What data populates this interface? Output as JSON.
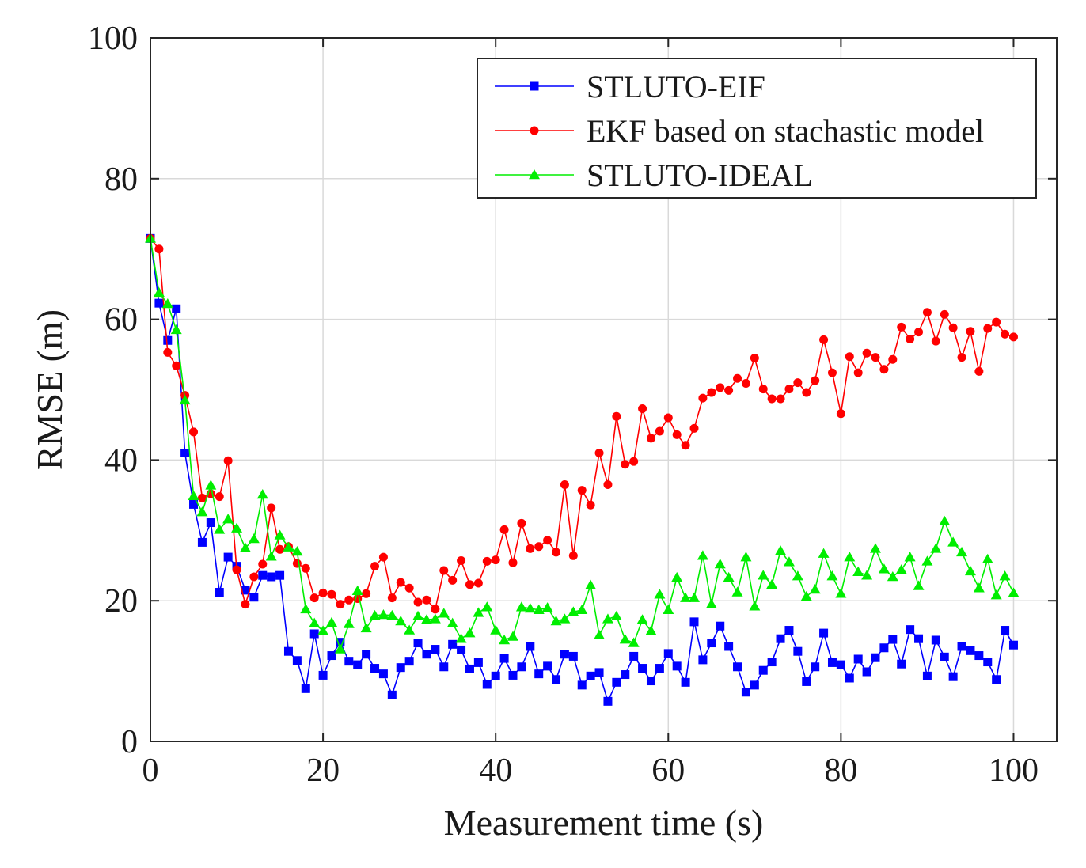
{
  "chart_data": {
    "type": "line",
    "title": "",
    "xlabel": "Measurement time (s)",
    "ylabel": "RMSE (m)",
    "xlim": [
      0,
      105
    ],
    "ylim": [
      0,
      100
    ],
    "xticks": [
      0,
      20,
      40,
      60,
      80,
      100
    ],
    "yticks": [
      0,
      20,
      40,
      60,
      80,
      100
    ],
    "xtick_labels": [
      "0",
      "20",
      "40",
      "60",
      "80",
      "100"
    ],
    "ytick_labels": [
      "0",
      "20",
      "40",
      "60",
      "80",
      "100"
    ],
    "grid": true,
    "legend_position": "top-right",
    "x": [
      0,
      1,
      2,
      3,
      4,
      5,
      6,
      7,
      8,
      9,
      10,
      11,
      12,
      13,
      14,
      15,
      16,
      17,
      18,
      19,
      20,
      21,
      22,
      23,
      24,
      25,
      26,
      27,
      28,
      29,
      30,
      31,
      32,
      33,
      34,
      35,
      36,
      37,
      38,
      39,
      40,
      41,
      42,
      43,
      44,
      45,
      46,
      47,
      48,
      49,
      50,
      51,
      52,
      53,
      54,
      55,
      56,
      57,
      58,
      59,
      60,
      61,
      62,
      63,
      64,
      65,
      66,
      67,
      68,
      69,
      70,
      71,
      72,
      73,
      74,
      75,
      76,
      77,
      78,
      79,
      80,
      81,
      82,
      83,
      84,
      85,
      86,
      87,
      88,
      89,
      90,
      91,
      92,
      93,
      94,
      95,
      96,
      97,
      98,
      99,
      100
    ],
    "series": [
      {
        "name": "STLUTO-EIF",
        "color": "#0000ff",
        "marker": "square",
        "values": [
          71.5,
          62.3,
          57.0,
          61.5,
          41.0,
          33.7,
          28.3,
          31.1,
          21.2,
          26.2,
          24.9,
          21.5,
          20.5,
          23.6,
          23.4,
          23.6,
          12.8,
          11.5,
          7.5,
          15.3,
          9.4,
          12.2,
          14.1,
          11.4,
          10.9,
          12.4,
          10.4,
          9.6,
          6.6,
          10.5,
          11.4,
          14.0,
          12.4,
          13.1,
          10.6,
          13.8,
          13.0,
          10.3,
          11.2,
          8.1,
          9.3,
          11.8,
          9.4,
          10.6,
          13.5,
          9.6,
          10.7,
          8.8,
          12.4,
          12.1,
          8.0,
          9.3,
          9.8,
          5.7,
          8.4,
          9.5,
          12.1,
          10.4,
          8.6,
          10.4,
          12.5,
          10.7,
          8.4,
          17.0,
          11.6,
          14.0,
          16.4,
          13.5,
          10.6,
          7.0,
          8.0,
          10.1,
          11.3,
          14.6,
          15.8,
          12.8,
          8.5,
          10.6,
          15.4,
          11.2,
          10.9,
          9.0,
          11.7,
          9.9,
          11.9,
          13.3,
          14.5,
          11.0,
          15.9,
          14.6,
          9.3,
          14.4,
          12.0,
          9.2,
          13.5,
          12.9,
          12.2,
          11.3,
          8.8,
          15.8,
          13.7
        ]
      },
      {
        "name": "EKF based on stachastic model",
        "color": "#ff0000",
        "marker": "circle",
        "values": [
          71.5,
          70.0,
          55.3,
          53.4,
          49.2,
          44.0,
          34.6,
          35.2,
          34.8,
          39.9,
          24.4,
          19.5,
          23.4,
          25.2,
          33.2,
          27.3,
          27.7,
          25.3,
          24.6,
          20.4,
          21.1,
          20.9,
          19.5,
          20.1,
          20.3,
          21.0,
          24.9,
          26.2,
          20.4,
          22.6,
          21.8,
          19.8,
          20.1,
          18.8,
          24.3,
          22.9,
          25.7,
          22.3,
          22.5,
          25.6,
          25.8,
          30.1,
          25.4,
          31.0,
          27.4,
          27.7,
          28.6,
          26.9,
          36.5,
          26.4,
          35.7,
          33.6,
          41.0,
          36.5,
          46.2,
          39.4,
          39.8,
          47.3,
          43.1,
          44.1,
          46.0,
          43.6,
          42.1,
          44.5,
          48.8,
          49.6,
          50.3,
          49.9,
          51.6,
          50.9,
          54.5,
          50.1,
          48.7,
          48.7,
          50.1,
          51.0,
          49.6,
          51.3,
          57.1,
          52.4,
          46.6,
          54.7,
          52.4,
          55.2,
          54.6,
          52.9,
          54.3,
          58.9,
          57.2,
          58.2,
          61.0,
          56.9,
          60.7,
          58.8,
          54.6,
          58.3,
          52.6,
          58.7,
          59.6,
          57.9,
          57.5
        ]
      },
      {
        "name": "STLUTO-IDEAL",
        "color": "#00ee00",
        "marker": "triangle",
        "values": [
          71.5,
          63.8,
          62.2,
          58.5,
          48.5,
          34.9,
          32.6,
          36.4,
          30.1,
          31.6,
          30.3,
          27.5,
          28.8,
          35.1,
          26.3,
          29.3,
          27.6,
          27.0,
          18.8,
          16.8,
          15.7,
          16.9,
          13.1,
          16.7,
          21.4,
          16.1,
          17.9,
          18.0,
          17.9,
          17.1,
          15.8,
          17.8,
          17.3,
          17.4,
          18.2,
          16.8,
          14.6,
          15.4,
          18.3,
          19.1,
          15.8,
          14.4,
          14.9,
          19.1,
          18.9,
          18.7,
          19.0,
          17.1,
          17.4,
          18.4,
          18.7,
          22.2,
          15.1,
          17.4,
          17.8,
          14.5,
          14.0,
          17.3,
          15.7,
          20.9,
          18.7,
          23.3,
          20.4,
          20.4,
          26.4,
          19.5,
          25.2,
          23.3,
          21.2,
          26.2,
          19.2,
          23.6,
          22.3,
          27.1,
          25.5,
          23.5,
          20.6,
          21.6,
          26.7,
          23.5,
          21.0,
          26.2,
          24.1,
          23.6,
          27.4,
          24.5,
          23.4,
          24.4,
          26.2,
          22.1,
          25.6,
          27.4,
          31.3,
          28.3,
          26.9,
          24.2,
          21.8,
          25.9,
          20.8,
          23.5,
          21.1
        ]
      }
    ]
  }
}
